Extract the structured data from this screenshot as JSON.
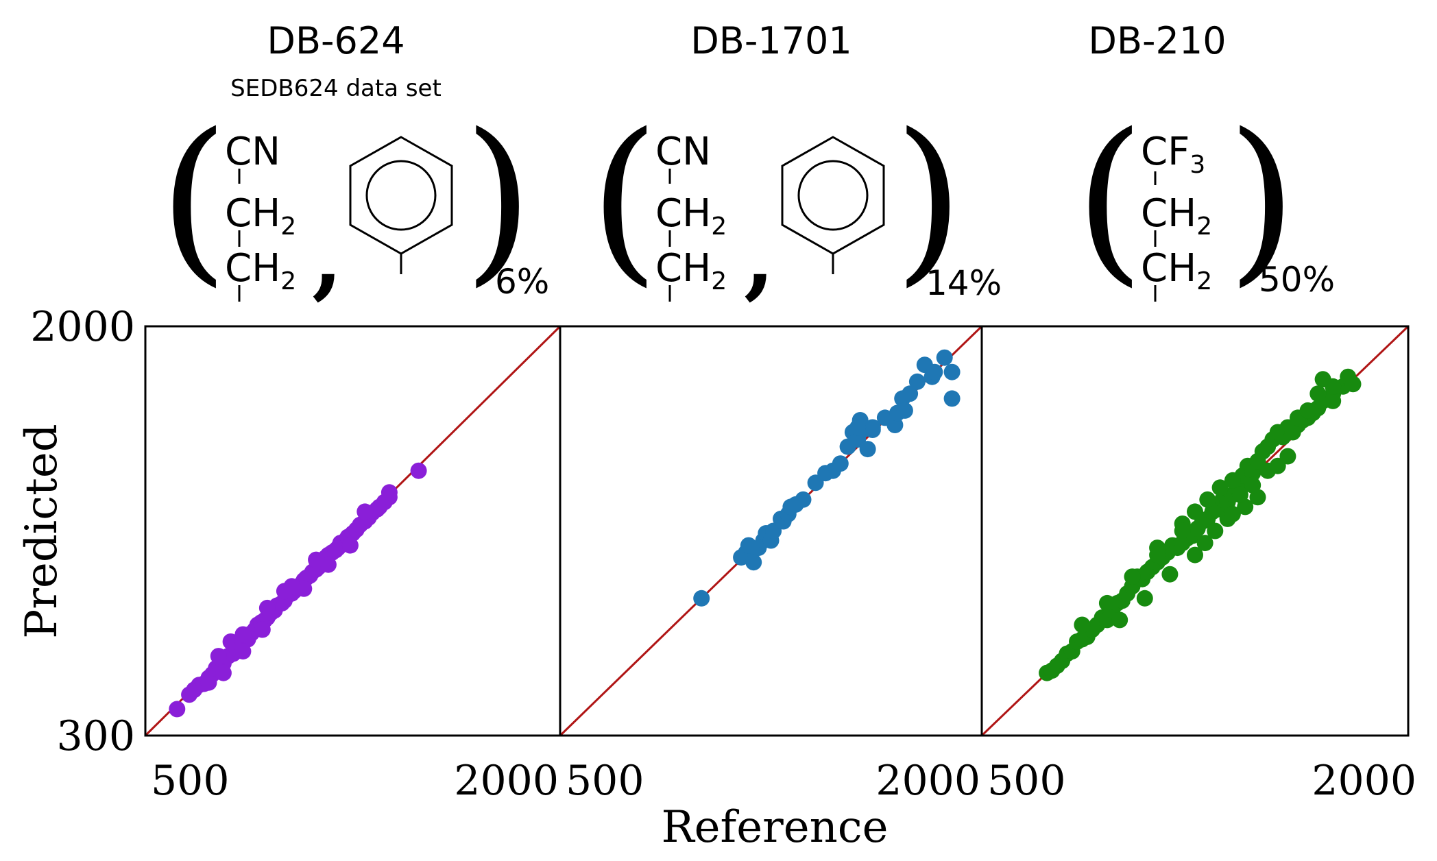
{
  "figure": {
    "ylabel": "Predicted",
    "xlabel": "Reference",
    "ytick_top": "2000",
    "ytick_bottom": "300"
  },
  "panels": [
    {
      "title": "DB-624",
      "subtitle": "SEDB624 data set",
      "groups": [
        "CN",
        "CH2",
        "CH2"
      ],
      "has_phenyl": true,
      "percent": "6%",
      "color": "#8a1fd8",
      "xticks": [
        "500",
        "2000"
      ]
    },
    {
      "title": "DB-1701",
      "subtitle": "",
      "groups": [
        "CN",
        "CH2",
        "CH2"
      ],
      "has_phenyl": true,
      "percent": "14%",
      "color": "#1f77b4",
      "xticks": [
        "500",
        "2000"
      ]
    },
    {
      "title": "DB-210",
      "subtitle": "",
      "groups": [
        "CF3",
        "CH2",
        "CH2"
      ],
      "has_phenyl": false,
      "percent": "50%",
      "color": "#178a0f",
      "xticks": [
        "500",
        "2000"
      ]
    }
  ],
  "chart_data": [
    {
      "type": "scatter",
      "title": "DB-624",
      "xlabel": "Reference",
      "ylabel": "Predicted",
      "xlim": [
        300,
        2000
      ],
      "ylim": [
        300,
        2000
      ],
      "reference_line": "y = x",
      "series": [
        {
          "name": "DB-624",
          "color": "#8a1fd8",
          "points": [
            [
              430,
              410
            ],
            [
              480,
              470
            ],
            [
              500,
              490
            ],
            [
              520,
              510
            ],
            [
              540,
              515
            ],
            [
              560,
              540
            ],
            [
              575,
              555
            ],
            [
              590,
              580
            ],
            [
              605,
              590
            ],
            [
              620,
              600
            ],
            [
              640,
              630
            ],
            [
              650,
              690
            ],
            [
              660,
              640
            ],
            [
              675,
              660
            ],
            [
              690,
              680
            ],
            [
              700,
              690
            ],
            [
              720,
              700
            ],
            [
              735,
              725
            ],
            [
              750,
              740
            ],
            [
              760,
              760
            ],
            [
              775,
              770
            ],
            [
              790,
              780
            ],
            [
              800,
              790
            ],
            [
              815,
              810
            ],
            [
              830,
              820
            ],
            [
              840,
              840
            ],
            [
              860,
              850
            ],
            [
              870,
              860
            ],
            [
              880,
              880
            ],
            [
              900,
              890
            ],
            [
              910,
              900
            ],
            [
              920,
              915
            ],
            [
              940,
              930
            ],
            [
              950,
              945
            ],
            [
              960,
              955
            ],
            [
              975,
              965
            ],
            [
              985,
              980
            ],
            [
              1000,
              990
            ],
            [
              1010,
              1000
            ],
            [
              1030,
              1020
            ],
            [
              1040,
              1040
            ],
            [
              1050,
              1050
            ],
            [
              1065,
              1060
            ],
            [
              1080,
              1070
            ],
            [
              1090,
              1080
            ],
            [
              1100,
              1100
            ],
            [
              1120,
              1110
            ],
            [
              1130,
              1125
            ],
            [
              1150,
              1140
            ],
            [
              1165,
              1155
            ],
            [
              1180,
              1175
            ],
            [
              1200,
              1190
            ],
            [
              1215,
              1205
            ],
            [
              1230,
              1225
            ],
            [
              1250,
              1240
            ],
            [
              1260,
              1250
            ],
            [
              1280,
              1270
            ],
            [
              1300,
              1290
            ],
            [
              1420,
              1400
            ],
            [
              560,
              520
            ],
            [
              700,
              650
            ],
            [
              870,
              900
            ],
            [
              620,
              560
            ],
            [
              780,
              740
            ],
            [
              950,
              910
            ],
            [
              1050,
              1010
            ],
            [
              1140,
              1090
            ],
            [
              1200,
              1230
            ],
            [
              1300,
              1310
            ],
            [
              1000,
              1030
            ],
            [
              900,
              920
            ],
            [
              800,
              830
            ],
            [
              700,
              720
            ],
            [
              600,
              630
            ]
          ]
        }
      ]
    },
    {
      "type": "scatter",
      "title": "DB-1701",
      "xlabel": "Reference",
      "ylabel": "Predicted",
      "xlim": [
        300,
        2000
      ],
      "ylim": [
        300,
        2000
      ],
      "reference_line": "y = x",
      "series": [
        {
          "name": "DB-1701",
          "color": "#1f77b4",
          "points": [
            [
              870,
              870
            ],
            [
              1030,
              1040
            ],
            [
              1050,
              1060
            ],
            [
              1060,
              1090
            ],
            [
              1080,
              1020
            ],
            [
              1100,
              1080
            ],
            [
              1120,
              1110
            ],
            [
              1130,
              1140
            ],
            [
              1150,
              1110
            ],
            [
              1160,
              1150
            ],
            [
              1190,
              1200
            ],
            [
              1200,
              1190
            ],
            [
              1220,
              1220
            ],
            [
              1230,
              1250
            ],
            [
              1250,
              1260
            ],
            [
              1280,
              1280
            ],
            [
              1330,
              1350
            ],
            [
              1370,
              1390
            ],
            [
              1400,
              1400
            ],
            [
              1430,
              1430
            ],
            [
              1460,
              1500
            ],
            [
              1480,
              1560
            ],
            [
              1500,
              1530
            ],
            [
              1510,
              1610
            ],
            [
              1520,
              1570
            ],
            [
              1540,
              1490
            ],
            [
              1560,
              1570
            ],
            [
              1610,
              1620
            ],
            [
              1650,
              1590
            ],
            [
              1660,
              1640
            ],
            [
              1680,
              1700
            ],
            [
              1690,
              1650
            ],
            [
              1710,
              1720
            ],
            [
              1740,
              1770
            ],
            [
              1770,
              1840
            ],
            [
              1800,
              1790
            ],
            [
              1810,
              1810
            ],
            [
              1850,
              1870
            ],
            [
              1880,
              1810
            ],
            [
              1880,
              1700
            ],
            [
              1560,
              1580
            ],
            [
              1500,
              1580
            ]
          ]
        }
      ]
    },
    {
      "type": "scatter",
      "title": "DB-210",
      "xlabel": "Reference",
      "ylabel": "Predicted",
      "xlim": [
        300,
        2000
      ],
      "ylim": [
        300,
        2000
      ],
      "reference_line": "y = x",
      "series": [
        {
          "name": "DB-210",
          "color": "#178a0f",
          "points": [
            [
              560,
              560
            ],
            [
              580,
              570
            ],
            [
              600,
              590
            ],
            [
              620,
              610
            ],
            [
              640,
              640
            ],
            [
              660,
              650
            ],
            [
              680,
              690
            ],
            [
              700,
              700
            ],
            [
              720,
              710
            ],
            [
              740,
              740
            ],
            [
              760,
              760
            ],
            [
              780,
              790
            ],
            [
              800,
              780
            ],
            [
              820,
              820
            ],
            [
              840,
              850
            ],
            [
              860,
              860
            ],
            [
              880,
              890
            ],
            [
              900,
              920
            ],
            [
              920,
              960
            ],
            [
              940,
              950
            ],
            [
              960,
              980
            ],
            [
              980,
              1000
            ],
            [
              1000,
              1020
            ],
            [
              1020,
              1040
            ],
            [
              1040,
              1060
            ],
            [
              1060,
              1090
            ],
            [
              1080,
              1080
            ],
            [
              1100,
              1100
            ],
            [
              1120,
              1120
            ],
            [
              1140,
              1130
            ],
            [
              1160,
              1160
            ],
            [
              1180,
              1190
            ],
            [
              1200,
              1200
            ],
            [
              1220,
              1230
            ],
            [
              1240,
              1240
            ],
            [
              1260,
              1280
            ],
            [
              1280,
              1270
            ],
            [
              1300,
              1300
            ],
            [
              1320,
              1330
            ],
            [
              1340,
              1380
            ],
            [
              1360,
              1420
            ],
            [
              1380,
              1390
            ],
            [
              1400,
              1440
            ],
            [
              1420,
              1480
            ],
            [
              1440,
              1500
            ],
            [
              1460,
              1530
            ],
            [
              1480,
              1560
            ],
            [
              1500,
              1540
            ],
            [
              1520,
              1580
            ],
            [
              1540,
              1560
            ],
            [
              1560,
              1590
            ],
            [
              1580,
              1610
            ],
            [
              1600,
              1620
            ],
            [
              1620,
              1640
            ],
            [
              1640,
              1660
            ],
            [
              1660,
              1690
            ],
            [
              1680,
              1700
            ],
            [
              1700,
              1720
            ],
            [
              1190,
              1100
            ],
            [
              1230,
              1150
            ],
            [
              1280,
              1200
            ],
            [
              1300,
              1220
            ],
            [
              1350,
              1250
            ],
            [
              1400,
              1290
            ],
            [
              1150,
              1050
            ],
            [
              1050,
              970
            ],
            [
              950,
              870
            ],
            [
              850,
              780
            ],
            [
              1000,
              1080
            ],
            [
              1100,
              1180
            ],
            [
              1150,
              1230
            ],
            [
              1200,
              1280
            ],
            [
              1250,
              1330
            ],
            [
              1300,
              1360
            ],
            [
              1330,
              1300
            ],
            [
              1380,
              1340
            ],
            [
              1440,
              1400
            ],
            [
              1480,
              1420
            ],
            [
              1520,
              1460
            ],
            [
              1560,
              1620
            ],
            [
              1600,
              1650
            ],
            [
              1640,
              1720
            ],
            [
              1660,
              1780
            ],
            [
              1700,
              1690
            ],
            [
              1740,
              1750
            ],
            [
              1760,
              1790
            ],
            [
              1780,
              1760
            ],
            [
              1700,
              1750
            ],
            [
              700,
              760
            ],
            [
              800,
              850
            ],
            [
              900,
              960
            ],
            [
              1000,
              1050
            ],
            [
              1100,
              1150
            ]
          ]
        }
      ]
    }
  ]
}
